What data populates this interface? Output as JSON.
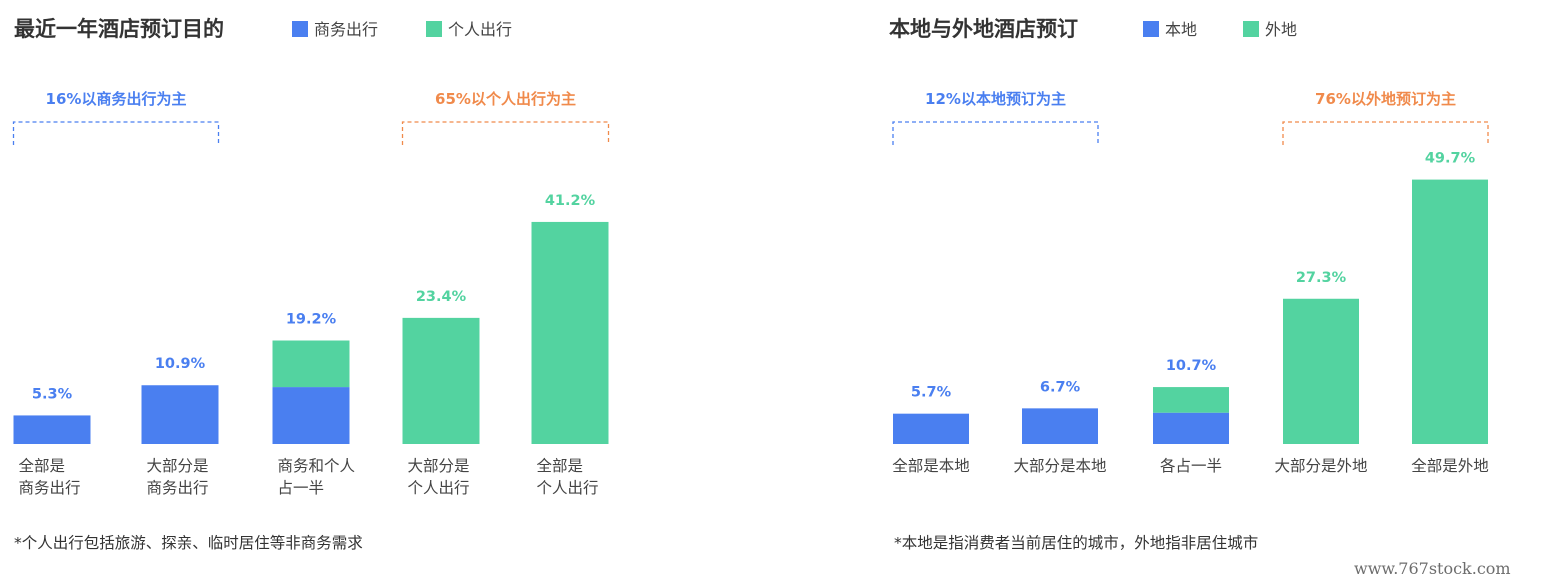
{
  "colors": {
    "blue": "#4a7ff0",
    "green": "#53d3a0",
    "orange": "#f08a4b",
    "text": "#333333"
  },
  "watermark": "www.767stock.com",
  "chart_data": [
    {
      "type": "bar",
      "title": "最近一年酒店预订目的",
      "legend": [
        {
          "name": "商务出行",
          "color": "#4a7ff0"
        },
        {
          "name": "个人出行",
          "color": "#53d3a0"
        }
      ],
      "categories": [
        [
          "全部是",
          "商务出行"
        ],
        [
          "大部分是",
          "商务出行"
        ],
        [
          "商务和个人",
          "占一半"
        ],
        [
          "大部分是",
          "个人出行"
        ],
        [
          "全部是",
          "个人出行"
        ]
      ],
      "values": [
        5.3,
        10.9,
        19.2,
        23.4,
        41.2
      ],
      "value_labels": [
        "5.3%",
        "10.9%",
        "19.2%",
        "23.4%",
        "41.2%"
      ],
      "colors": [
        "blue",
        "blue",
        "split",
        "green",
        "green"
      ],
      "brackets": [
        {
          "label": "16%以商务出行为主",
          "from": 0,
          "to": 1,
          "color": "blue"
        },
        {
          "label": "65%以个人出行为主",
          "from": 3,
          "to": 4,
          "color": "orange"
        }
      ],
      "footnote": "*个人出行包括旅游、探亲、临时居住等非商务需求",
      "ylim": [
        0,
        45
      ]
    },
    {
      "type": "bar",
      "title": "本地与外地酒店预订",
      "legend": [
        {
          "name": "本地",
          "color": "#4a7ff0"
        },
        {
          "name": "外地",
          "color": "#53d3a0"
        }
      ],
      "categories": [
        [
          "全部是本地"
        ],
        [
          "大部分是本地"
        ],
        [
          "各占一半"
        ],
        [
          "大部分是外地"
        ],
        [
          "全部是外地"
        ]
      ],
      "values": [
        5.7,
        6.7,
        10.7,
        27.3,
        49.7
      ],
      "value_labels": [
        "5.7%",
        "6.7%",
        "10.7%",
        "27.3%",
        "49.7%"
      ],
      "colors": [
        "blue",
        "blue",
        "split",
        "green",
        "green"
      ],
      "brackets": [
        {
          "label": "12%以本地预订为主",
          "from": 0,
          "to": 1,
          "color": "blue"
        },
        {
          "label": "76%以外地预订为主",
          "from": 3,
          "to": 4,
          "color": "orange"
        }
      ],
      "footnote": "*本地是指消费者当前居住的城市，外地指非居住城市",
      "ylim": [
        0,
        50
      ]
    }
  ]
}
